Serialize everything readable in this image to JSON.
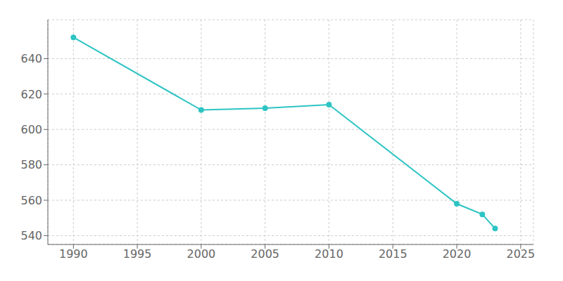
{
  "chart_data": {
    "type": "line",
    "x": [
      1990,
      2000,
      2005,
      2010,
      2020,
      2022,
      2023
    ],
    "values": [
      652,
      611,
      612,
      614,
      558,
      552,
      544
    ],
    "color": "#2EC4C4",
    "marker": "circle",
    "xlim": [
      1988,
      2026
    ],
    "ylim": [
      535,
      662
    ],
    "xticks": [
      1990,
      1995,
      2000,
      2005,
      2010,
      2015,
      2020,
      2025
    ],
    "yticks": [
      540,
      560,
      580,
      600,
      620,
      640
    ],
    "grid": true
  }
}
